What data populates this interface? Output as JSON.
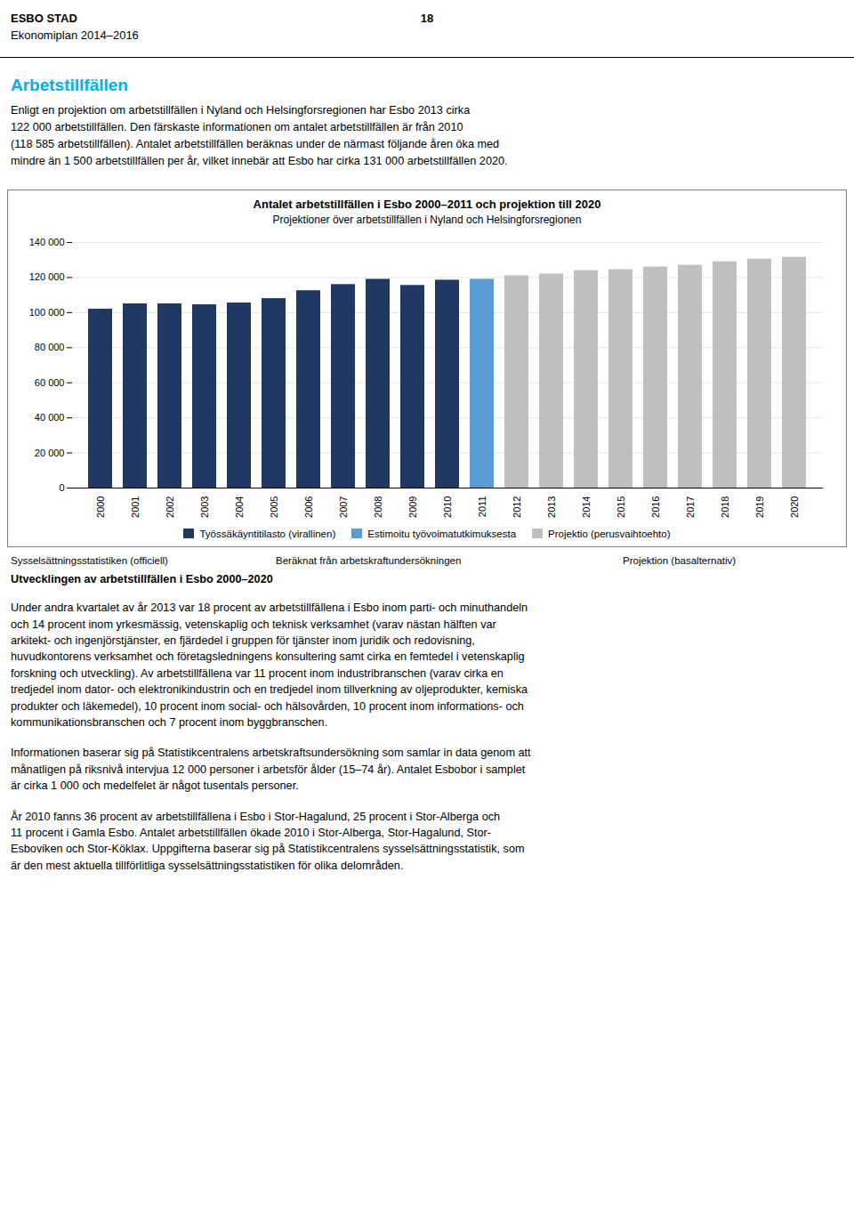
{
  "header": {
    "left": "ESBO STAD",
    "right": "18",
    "sub": "Ekonomiplan 2014–2016"
  },
  "section_title": "Arbetstillfällen",
  "section_title_color": "#00B0F0",
  "intro": "Enligt en projektion om arbetstillfällen i Nyland och Helsingforsregionen har Esbo 2013 cirka\n122 000 arbetstillfällen. Den färskaste informationen om antalet arbetstillfällen är från 2010\n(118 585 arbetstillfällen). Antalet arbetstillfällen beräknas under de närmast följande åren öka med\nmindre än 1 500 arbetstillfällen per år, vilket innebär att Esbo har cirka 131 000 arbetstillfällen 2020.",
  "chart_data": {
    "type": "bar",
    "title": "Antalet arbetstillfällen i Esbo 2000–2011 och projektion till 2020",
    "subtitle": "Projektioner över arbetstillfällen  i Nyland och Helsingforsregionen",
    "categories": [
      "2000",
      "2001",
      "2002",
      "2003",
      "2004",
      "2005",
      "2006",
      "2007",
      "2008",
      "2009",
      "2010",
      "2011",
      "2012",
      "2013",
      "2014",
      "2015",
      "2016",
      "2017",
      "2018",
      "2019",
      "2020"
    ],
    "series": [
      {
        "name": "Työssäkäyntitilasto (virallinen)",
        "color": "#1F3864",
        "values": [
          102000,
          105000,
          105000,
          104500,
          105500,
          108000,
          112500,
          116000,
          119000,
          115500,
          118500,
          null,
          null,
          null,
          null,
          null,
          null,
          null,
          null,
          null,
          null
        ]
      },
      {
        "name": "Estimoitu työvoimatutkimuksesta",
        "color": "#5B9BD5",
        "values": [
          null,
          null,
          null,
          null,
          null,
          null,
          null,
          null,
          null,
          null,
          null,
          119000,
          null,
          null,
          null,
          null,
          null,
          null,
          null,
          null,
          null
        ]
      },
      {
        "name": "Projektio (perusvaihtoehto)",
        "color": "#C0C0C0",
        "values": [
          null,
          null,
          null,
          null,
          null,
          null,
          null,
          null,
          null,
          null,
          null,
          null,
          121000,
          122000,
          124000,
          124500,
          126000,
          127000,
          129000,
          130500,
          131500
        ]
      }
    ],
    "stacked": true,
    "ylim": [
      0,
      140000
    ],
    "yticks": [
      0,
      {
        "value": 20000,
        "label": "20 000"
      },
      {
        "value": 40000,
        "label": "40 000"
      },
      {
        "value": 60000,
        "label": "60 000"
      },
      {
        "value": 80000,
        "label": "80 000"
      },
      {
        "value": 100000,
        "label": "100 000"
      },
      {
        "value": 120000,
        "label": "120 000"
      },
      {
        "value": 140000,
        "label": "140 000"
      }
    ],
    "grid": true,
    "legend": "bottom"
  },
  "captions": [
    "Sysselsättningsstatistiken (officiell)",
    "Beräknat från arbetskraftundersökningen",
    "Projektion (basalternativ)"
  ],
  "caption_sub": "Utvecklingen av arbetstillfällen i Esbo 2000–2020",
  "paragraphs": [
    "Under andra kvartalet av år 2013 var 18 procent av arbetstillfällena i Esbo inom parti- och minuthandeln\noch 14 procent inom yrkesmässig, vetenskaplig och teknisk verksamhet (varav nästan hälften var\narkitekt- och ingenjörstjänster, en fjärdedel i gruppen för tjänster inom juridik och redovisning,\nhuvudkontorens verksamhet och företagsledningens konsultering samt cirka en femtedel i vetenskaplig\nforskning och utveckling).  Av arbetstillfällena var 11 procent inom industribranschen (varav cirka en\ntredjedel inom dator- och elektronikindustrin och en tredjedel inom tillverkning av oljeprodukter, kemiska\nprodukter och läkemedel), 10 procent inom social- och hälsovården, 10 procent inom informations- och\nkommunikationsbranschen och 7 procent inom byggbranschen.",
    "Informationen baserar sig på Statistikcentralens arbetskraftsundersökning som samlar in data genom att\nmånatligen på riksnivå intervjua 12 000 personer i arbetsför ålder (15–74 år). Antalet Esbobor i samplet\när cirka 1 000 och medelfelet är något tusentals personer.",
    "År 2010 fanns 36 procent av arbetstillfällena i Esbo i Stor-Hagalund, 25 procent i Stor-Alberga och\n11 procent i Gamla Esbo. Antalet arbetstillfällen ökade 2010 i Stor-Alberga, Stor-Hagalund, Stor-\nEsboviken och Stor-Köklax. Uppgifterna baserar sig på Statistikcentralens sysselsättningsstatistik, som\när den mest aktuella tillförlitliga sysselsättningsstatistiken för olika delområden."
  ]
}
